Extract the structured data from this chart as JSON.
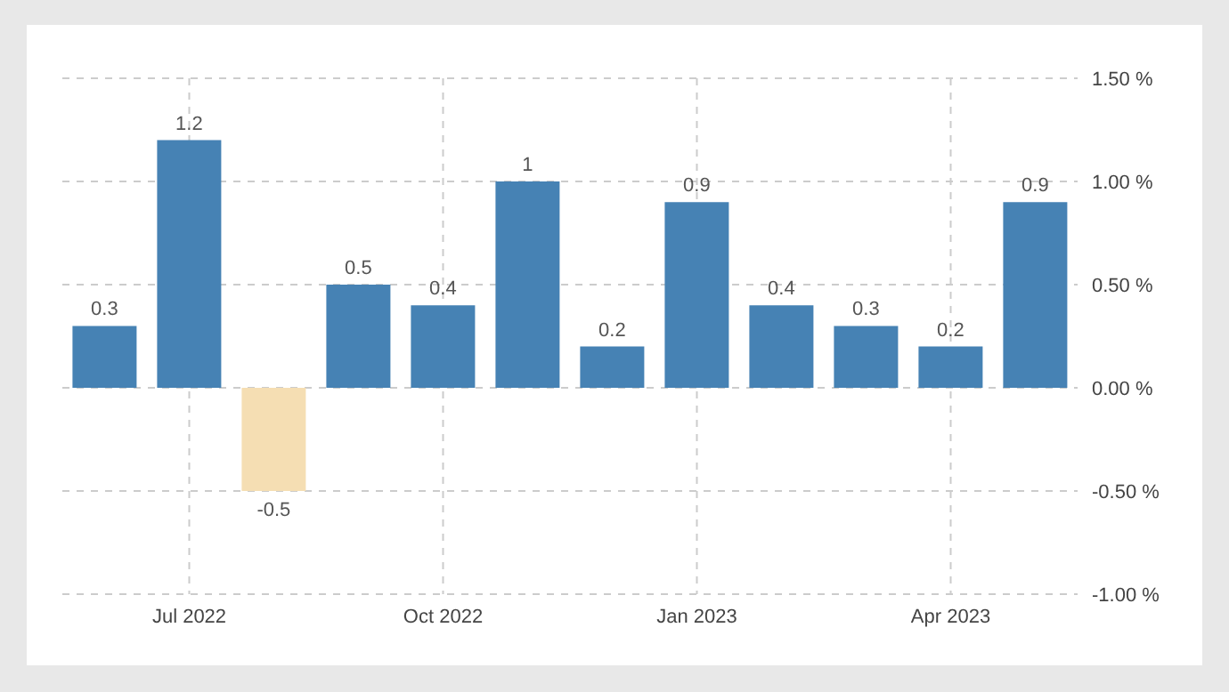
{
  "chart_data": {
    "type": "bar",
    "categories": [
      null,
      "Jul 2022",
      null,
      null,
      "Oct 2022",
      null,
      null,
      "Jan 2023",
      null,
      null,
      "Apr 2023",
      null
    ],
    "values": [
      0.3,
      1.2,
      -0.5,
      0.5,
      0.4,
      1,
      0.2,
      0.9,
      0.4,
      0.3,
      0.2,
      0.9
    ],
    "colors": [
      "#4682b4",
      "#4682b4",
      "#f5deb3",
      "#4682b4",
      "#4682b4",
      "#4682b4",
      "#4682b4",
      "#4682b4",
      "#4682b4",
      "#4682b4",
      "#4682b4",
      "#4682b4"
    ],
    "ylim": [
      -1,
      1.5
    ],
    "yticks": [
      {
        "value": -1,
        "label": "-1.00 %"
      },
      {
        "value": -0.5,
        "label": "-0.50 %"
      },
      {
        "value": 0,
        "label": "0.00 %"
      },
      {
        "value": 0.5,
        "label": "0.50 %"
      },
      {
        "value": 1,
        "label": "1.00 %"
      },
      {
        "value": 1.5,
        "label": "1.50 %"
      }
    ],
    "data_labels": true,
    "grid": true
  }
}
